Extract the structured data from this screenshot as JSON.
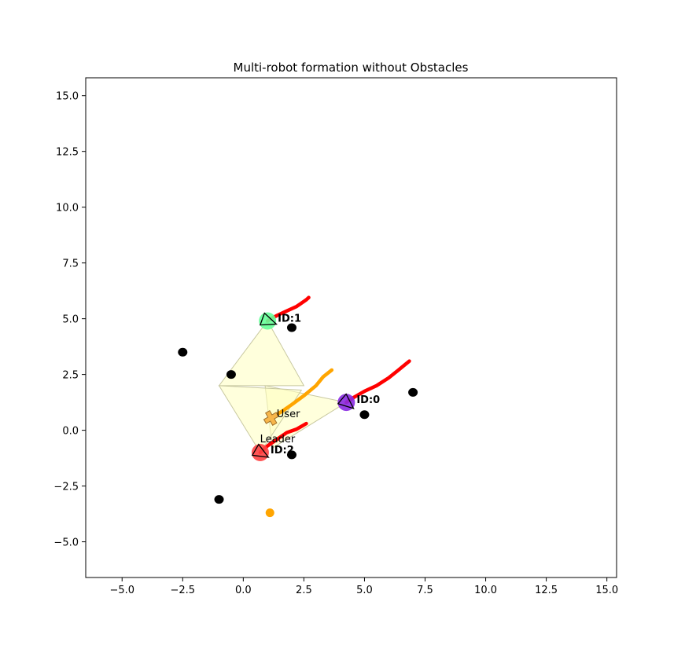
{
  "chart_data": {
    "type": "scatter",
    "title": "Multi-robot formation without Obstacles",
    "xlabel": "",
    "ylabel": "",
    "xlim": [
      -6.5,
      15.4
    ],
    "ylim": [
      -6.6,
      15.8
    ],
    "xticks": [
      -5.0,
      -2.5,
      0.0,
      2.5,
      5.0,
      7.5,
      10.0,
      12.5,
      15.0
    ],
    "xtick_labels": [
      "−5.0",
      "−2.5",
      "0.0",
      "2.5",
      "5.0",
      "7.5",
      "10.0",
      "12.5",
      "15.0"
    ],
    "yticks": [
      -5.0,
      -2.5,
      0.0,
      2.5,
      5.0,
      7.5,
      10.0,
      12.5,
      15.0
    ],
    "ytick_labels": [
      "−5.0",
      "−2.5",
      "0.0",
      "2.5",
      "5.0",
      "7.5",
      "10.0",
      "12.5",
      "15.0"
    ],
    "grid": false,
    "colors": {
      "trajectory": "#ff0000",
      "user_path": "#ffa500",
      "obstacle": "#000000",
      "formation_fill": "#ffffc0",
      "formation_edge": "#c8c8a0"
    },
    "robots": [
      {
        "label": "ID:0",
        "x": 4.25,
        "y": 1.25,
        "color": "#8a2be2",
        "heading_deg": 220
      },
      {
        "label": "ID:1",
        "x": 1.0,
        "y": 4.9,
        "color": "#66ff99",
        "heading_deg": 200
      },
      {
        "label": "ID:2",
        "x": 0.7,
        "y": -1.0,
        "color": "#ff4444",
        "heading_deg": 210
      }
    ],
    "trajectories": [
      {
        "robot": "ID:0",
        "points": [
          [
            4.25,
            1.25
          ],
          [
            4.6,
            1.5
          ],
          [
            5.0,
            1.75
          ],
          [
            5.5,
            2.0
          ],
          [
            6.0,
            2.35
          ],
          [
            6.4,
            2.7
          ],
          [
            6.85,
            3.1
          ]
        ]
      },
      {
        "robot": "ID:1",
        "points": [
          [
            1.0,
            4.9
          ],
          [
            1.4,
            5.15
          ],
          [
            1.8,
            5.35
          ],
          [
            2.2,
            5.55
          ],
          [
            2.6,
            5.85
          ],
          [
            2.7,
            5.95
          ]
        ]
      },
      {
        "robot": "ID:2",
        "points": [
          [
            0.7,
            -1.0
          ],
          [
            1.0,
            -0.7
          ],
          [
            1.4,
            -0.4
          ],
          [
            1.8,
            -0.1
          ],
          [
            2.2,
            0.05
          ],
          [
            2.6,
            0.3
          ]
        ]
      }
    ],
    "user": {
      "label": "User",
      "x": 1.15,
      "y": 0.55,
      "path": [
        [
          1.15,
          0.55
        ],
        [
          1.6,
          0.85
        ],
        [
          2.0,
          1.15
        ],
        [
          2.5,
          1.55
        ],
        [
          3.0,
          2.0
        ],
        [
          3.3,
          2.4
        ],
        [
          3.65,
          2.7
        ]
      ]
    },
    "leader_label": {
      "text": "Leader",
      "x": 0.95,
      "y": -0.4
    },
    "goal": {
      "x": 1.1,
      "y": -3.7
    },
    "obstacles": [
      [
        -2.5,
        3.5
      ],
      [
        -0.5,
        2.5
      ],
      [
        2.0,
        4.6
      ],
      [
        5.0,
        0.7
      ],
      [
        7.0,
        1.7
      ],
      [
        2.0,
        -1.1
      ],
      [
        -1.0,
        -3.1
      ]
    ],
    "formation_triangles": [
      [
        [
          1.0,
          4.9
        ],
        [
          -1.0,
          2.0
        ],
        [
          2.5,
          2.0
        ]
      ],
      [
        [
          0.9,
          2.0
        ],
        [
          4.25,
          1.25
        ],
        [
          1.2,
          -0.8
        ]
      ],
      [
        [
          -1.0,
          2.0
        ],
        [
          2.4,
          1.8
        ],
        [
          0.7,
          -1.0
        ]
      ]
    ]
  }
}
